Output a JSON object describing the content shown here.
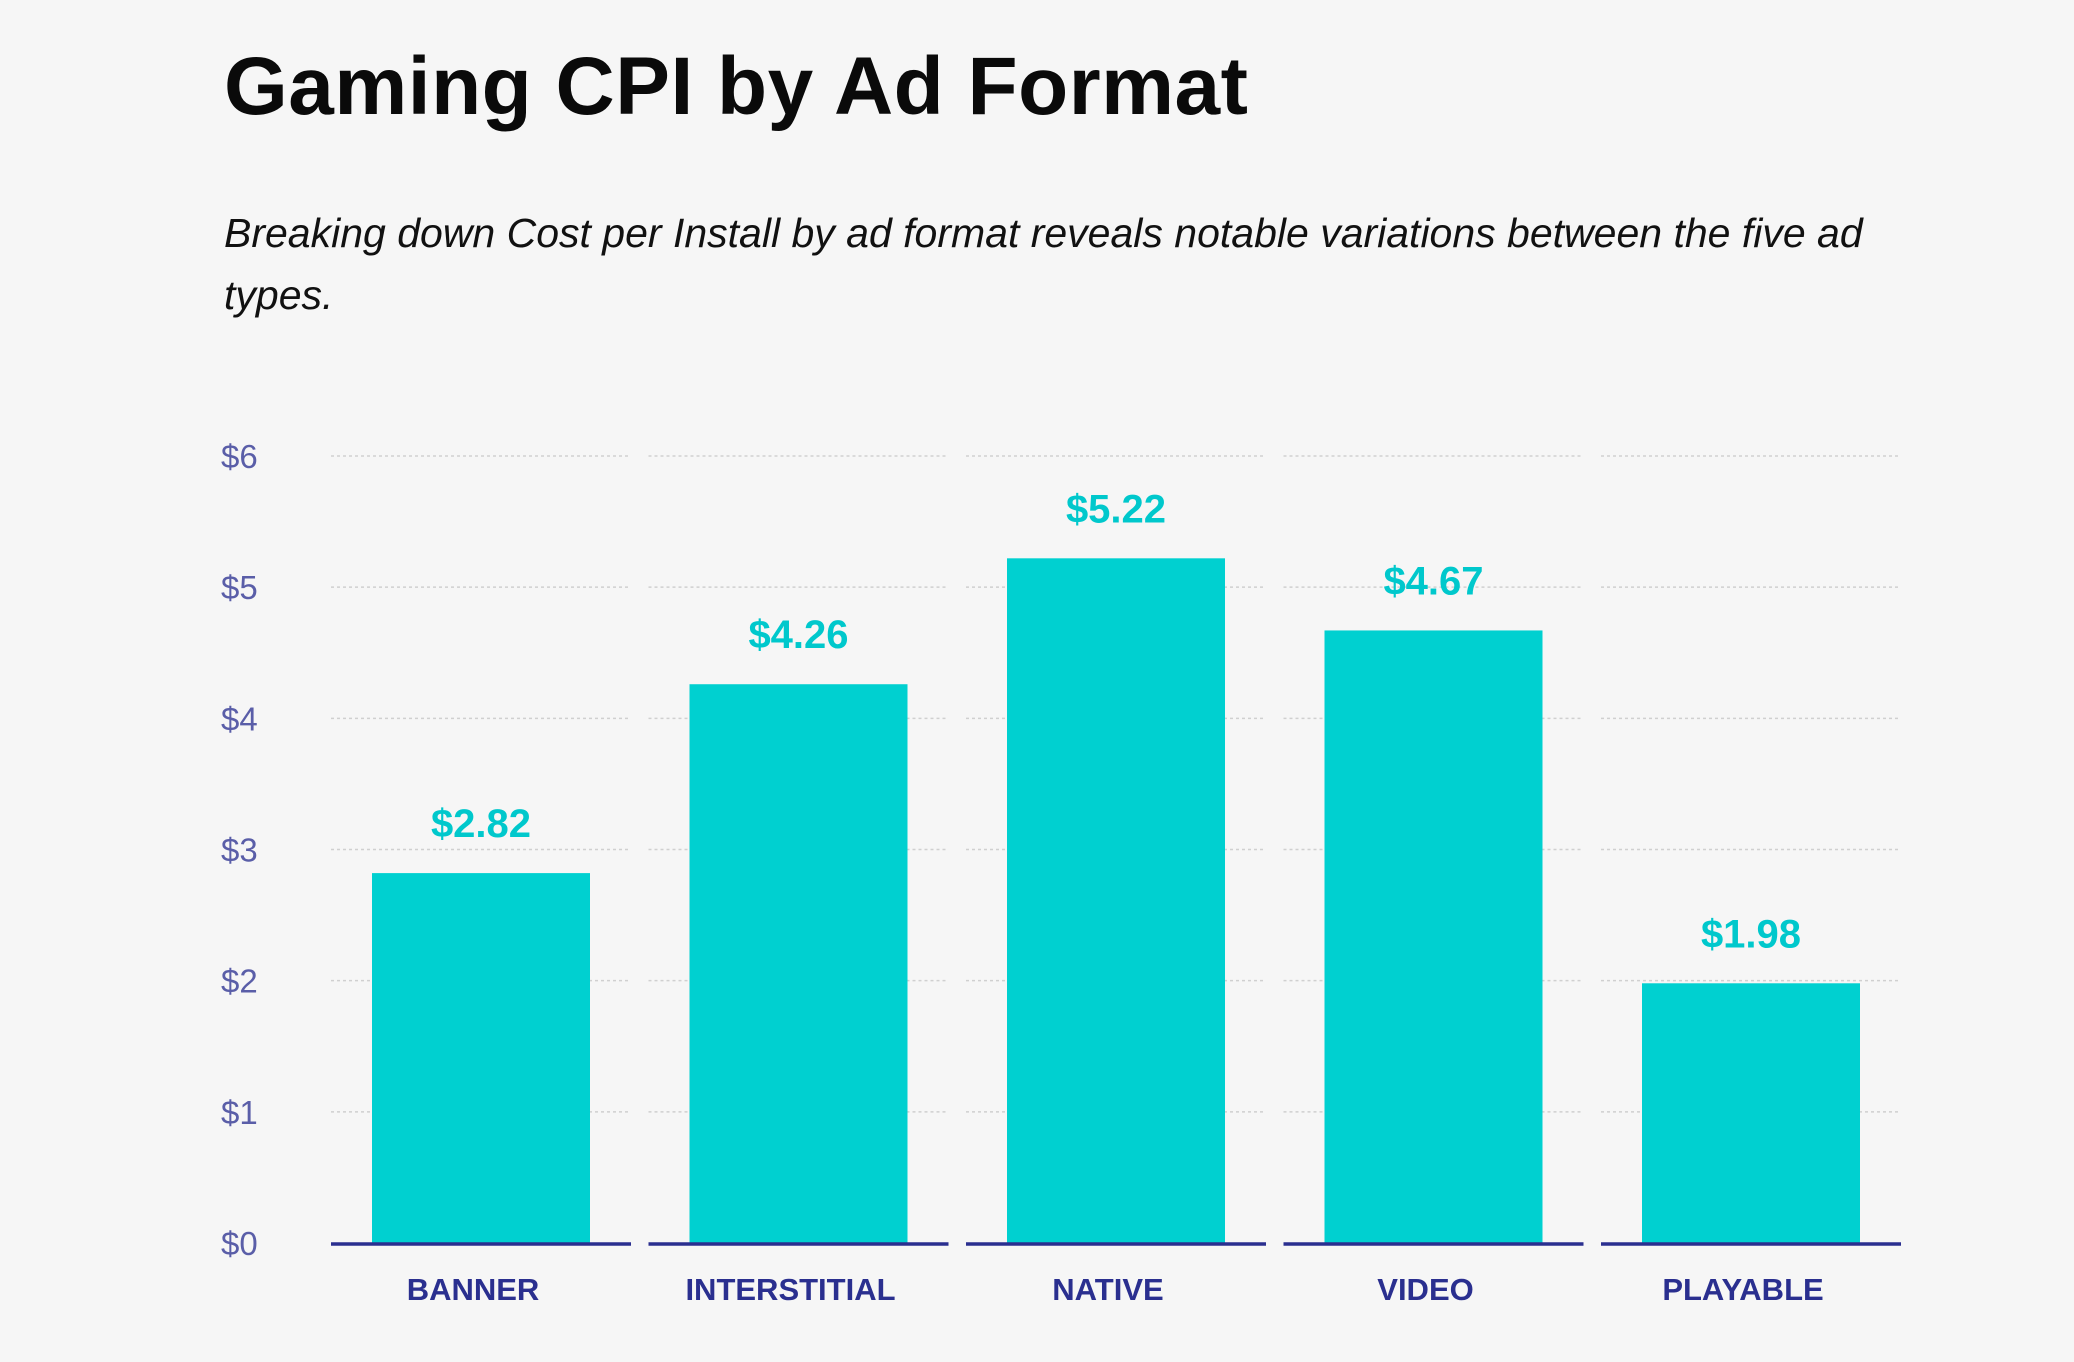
{
  "title": "Gaming CPI by Ad Format",
  "subtitle": "Breaking down Cost per Install by ad format reveals notable variations between the five ad types.",
  "chart_data": {
    "type": "bar",
    "title": "Gaming CPI by Ad Format",
    "categories": [
      "BANNER",
      "INTERSTITIAL",
      "NATIVE",
      "VIDEO",
      "PLAYABLE"
    ],
    "values": [
      2.82,
      4.26,
      5.22,
      4.67,
      1.98
    ],
    "data_labels": [
      "$2.82",
      "$4.26",
      "$5.22",
      "$4.67",
      "$1.98"
    ],
    "yticks": [
      "$0",
      "$1",
      "$2",
      "$3",
      "$4",
      "$5",
      "$6"
    ],
    "ylim": [
      0,
      6
    ],
    "grid": true,
    "colors": {
      "bar": "#00d0d0",
      "label": "#00c8cc",
      "axis": "#2a2f8f",
      "tick": "#5a5ea8",
      "grid": "#d0d0d0"
    }
  }
}
